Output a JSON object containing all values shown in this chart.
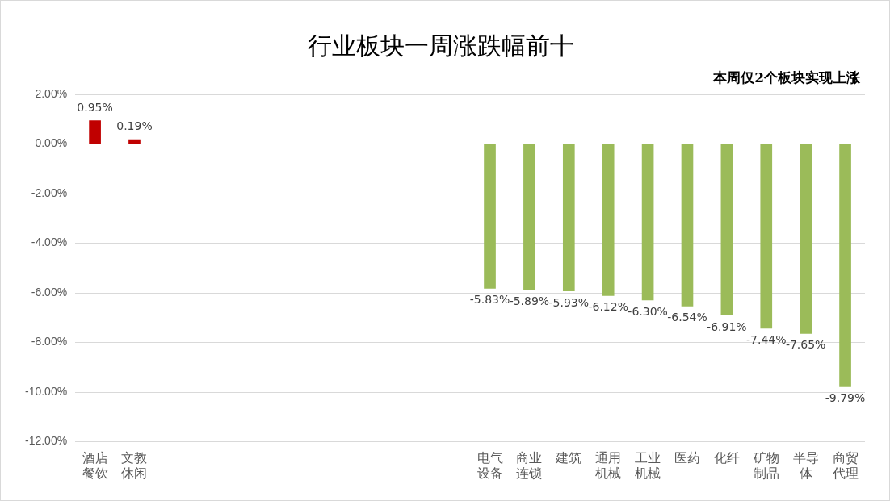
{
  "chart_data": {
    "type": "bar",
    "title": "行业板块一周涨跌幅前十",
    "annotations": [
      "本周仅2个板块实现上涨"
    ],
    "categories": [
      "酒店餐饮",
      "文教休闲",
      null,
      null,
      null,
      null,
      null,
      null,
      null,
      null,
      "电气设备",
      "商业连锁",
      "建筑",
      "通用机械",
      "工业机械",
      "医药",
      "化纤",
      "矿物制品",
      "半导体",
      "商贸代理"
    ],
    "values": [
      0.95,
      0.19,
      null,
      null,
      null,
      null,
      null,
      null,
      null,
      null,
      -5.83,
      -5.89,
      -5.93,
      -6.12,
      -6.3,
      -6.54,
      -6.91,
      -7.44,
      -7.65,
      -9.79
    ],
    "colors": [
      "#c00000",
      "#c00000",
      null,
      null,
      null,
      null,
      null,
      null,
      null,
      null,
      "#9bbb59",
      "#9bbb59",
      "#9bbb59",
      "#9bbb59",
      "#9bbb59",
      "#9bbb59",
      "#9bbb59",
      "#9bbb59",
      "#9bbb59",
      "#9bbb59"
    ],
    "ylim": [
      -12,
      2
    ],
    "yticks": [
      {
        "value": -12,
        "label": "-12.00%"
      },
      {
        "value": -10,
        "label": "-10.00%"
      },
      {
        "value": -8,
        "label": "-8.00%"
      },
      {
        "value": -6,
        "label": "-6.00%"
      },
      {
        "value": -4,
        "label": "-4.00%"
      },
      {
        "value": -2,
        "label": "-2.00%"
      },
      {
        "value": 0,
        "label": "0.00%"
      },
      {
        "value": 2,
        "label": "2.00%"
      }
    ],
    "value_labels": [
      "0.95%",
      "0.19%",
      null,
      null,
      null,
      null,
      null,
      null,
      null,
      null,
      "-5.83%",
      "-5.89%",
      "-5.93%",
      "-6.12%",
      "-6.30%",
      "-6.54%",
      "-6.91%",
      "-7.44%",
      "-7.65%",
      "-9.79%"
    ],
    "grid": "y",
    "legend": false
  }
}
